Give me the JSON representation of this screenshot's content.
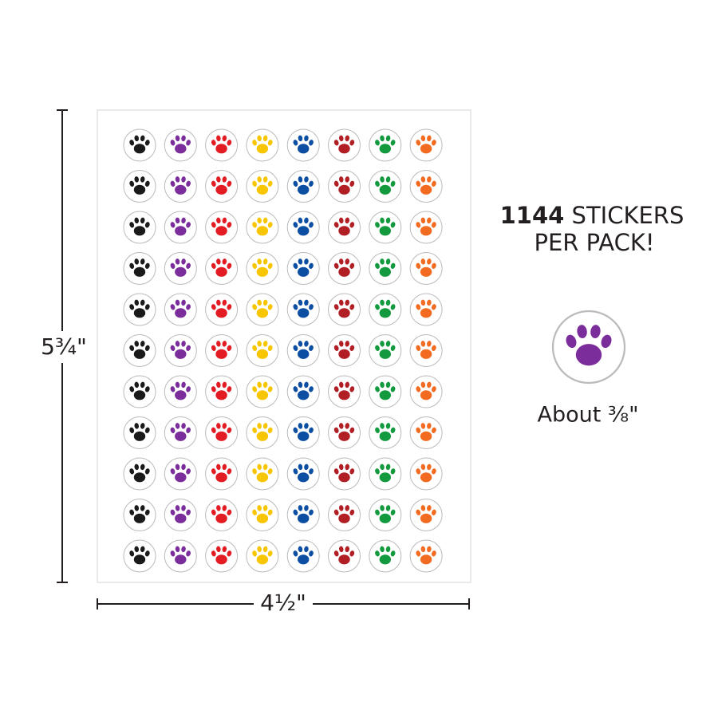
{
  "sheet": {
    "height_label": "5¾\"",
    "width_label": "4½\""
  },
  "callout": {
    "count": "1144",
    "line1_rest": "STICKERS",
    "line2": "PER PACK!"
  },
  "sample": {
    "label": "About ⅜\""
  }
}
